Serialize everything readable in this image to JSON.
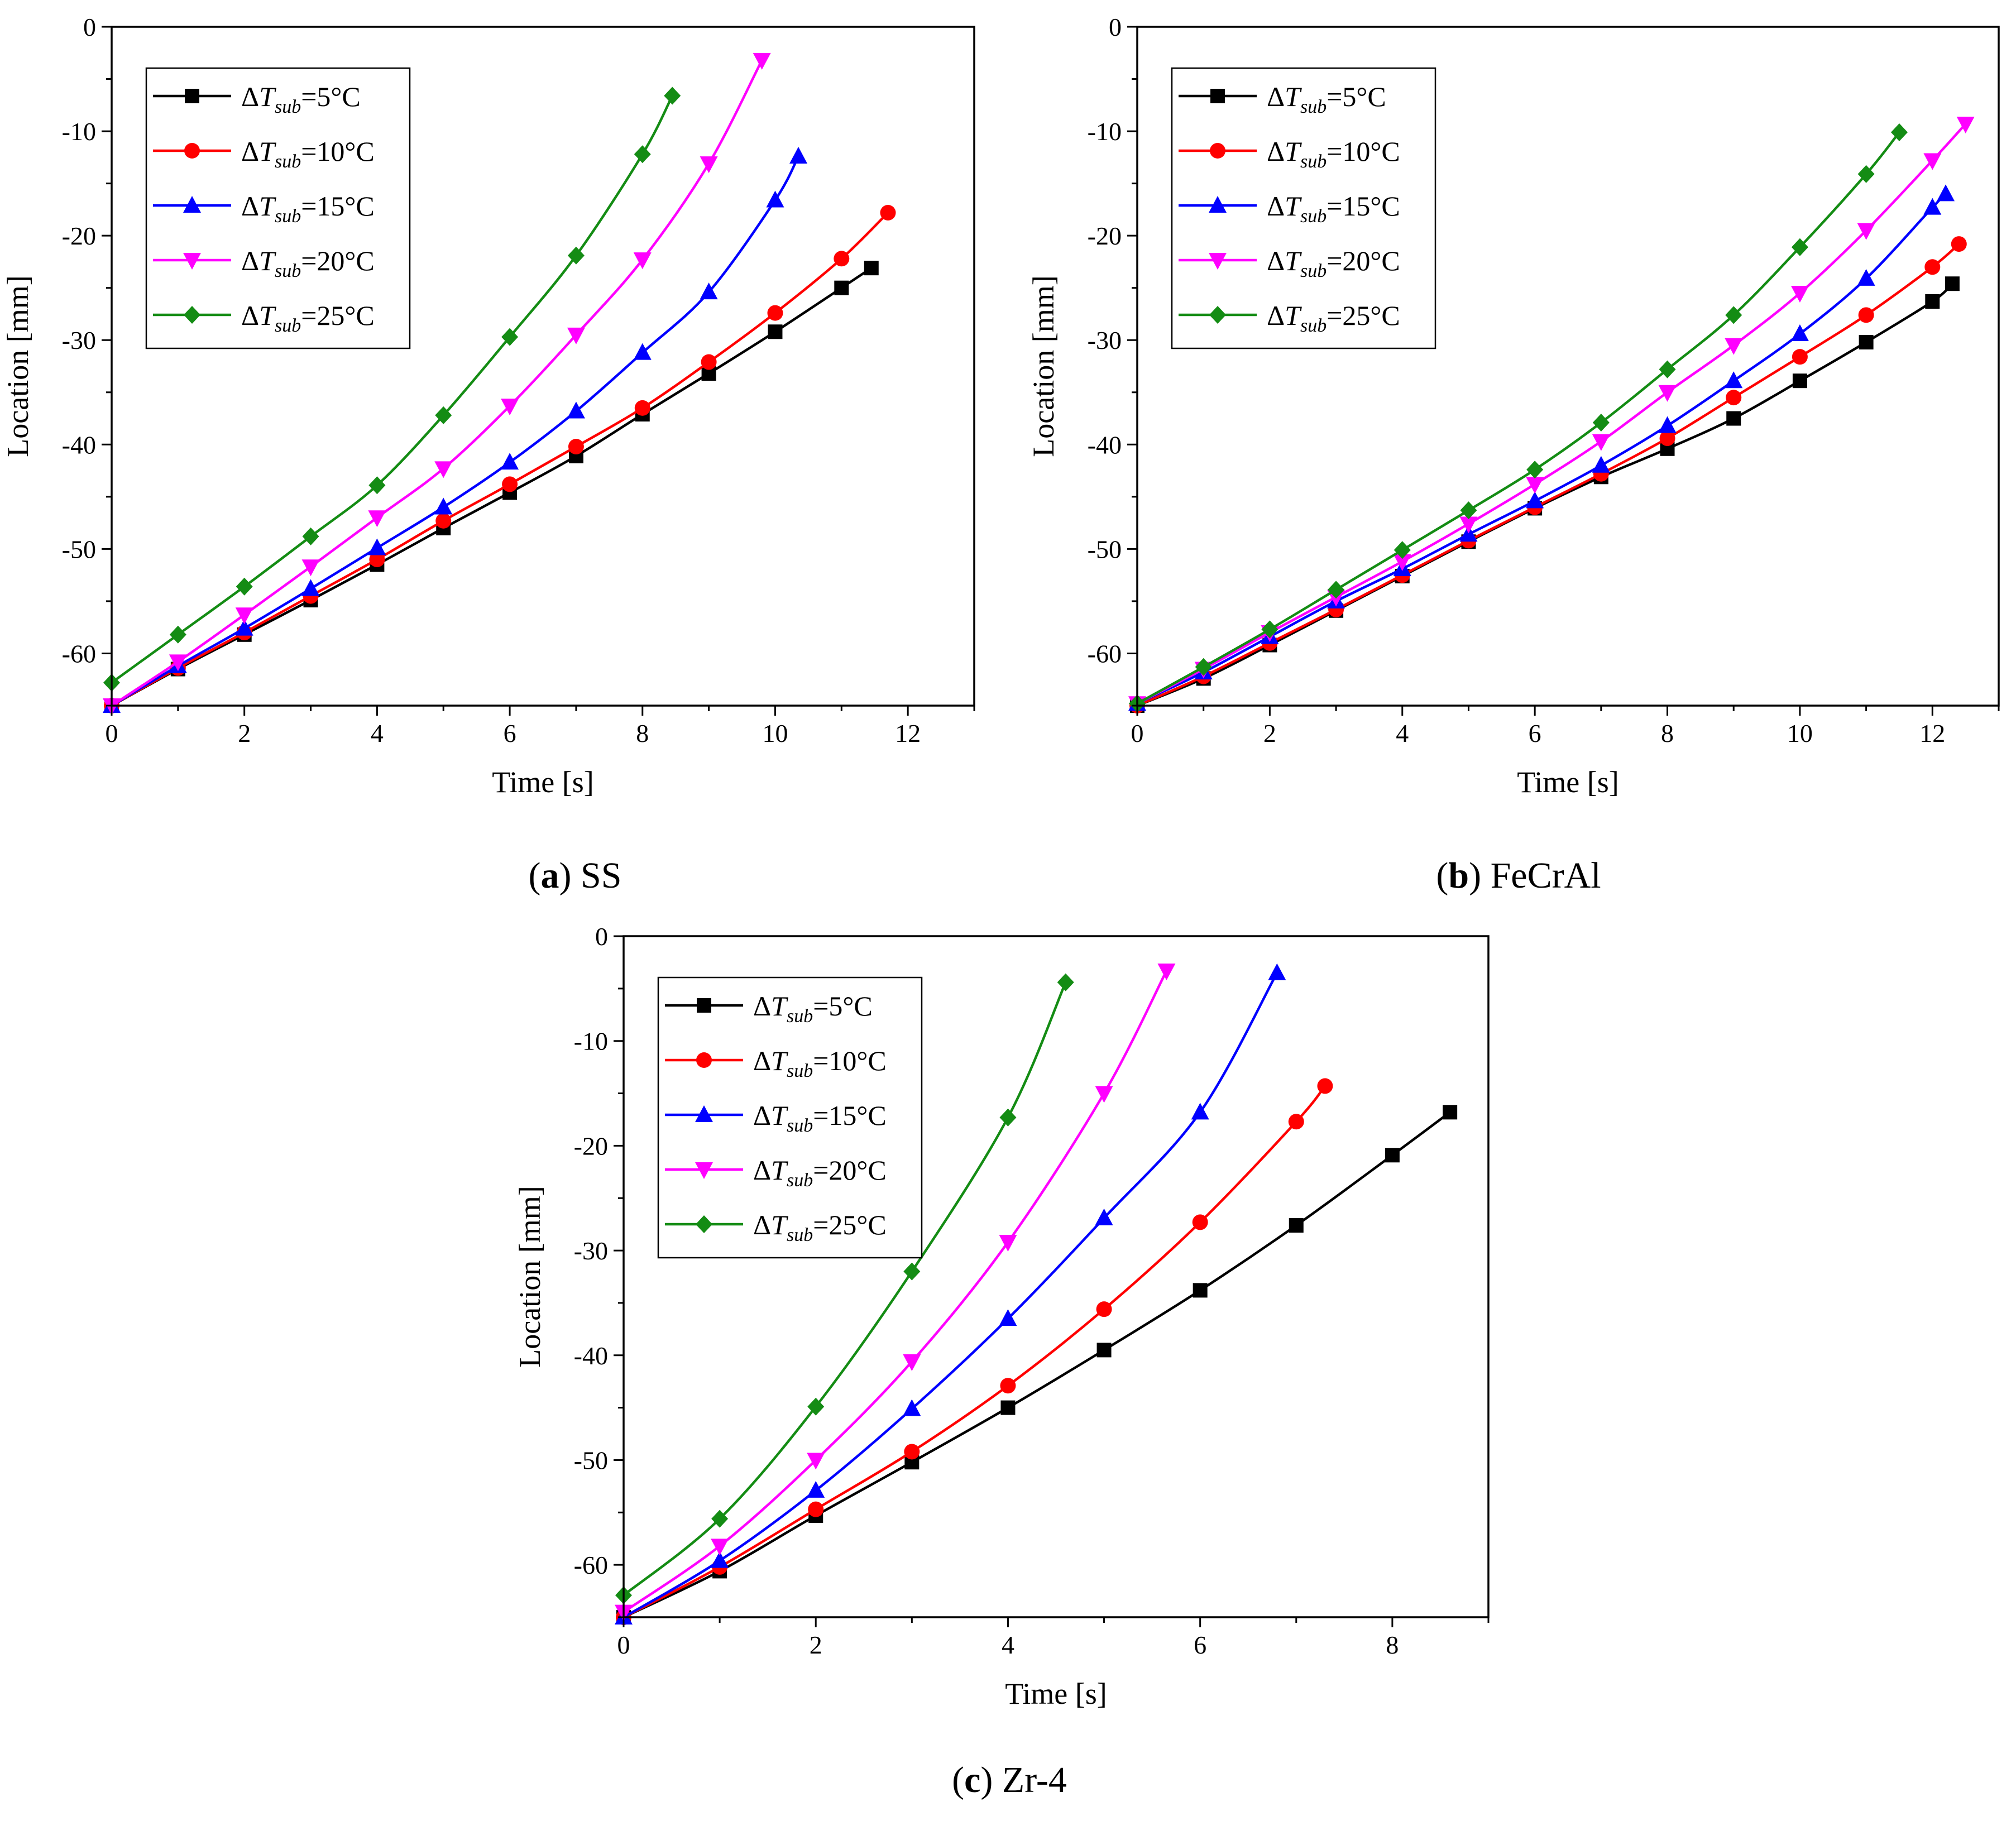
{
  "legend_prefix": "ΔT",
  "legend_sub": "sub",
  "chart_data": [
    {
      "id": "a",
      "type": "line",
      "caption_letter": "a",
      "caption_text": "SS",
      "xlabel": "Time [s]",
      "ylabel": "Location [mm]",
      "xlim": [
        0,
        13
      ],
      "ylim": [
        -65,
        0
      ],
      "xticks": [
        0,
        2,
        4,
        6,
        8,
        10,
        12
      ],
      "yticks": [
        0,
        -10,
        -20,
        -30,
        -40,
        -50,
        -60
      ],
      "legend_position": "top-left",
      "series": [
        {
          "name": "=5°C",
          "color": "#000000",
          "marker": "square",
          "x": [
            0,
            1,
            2,
            3,
            4,
            5,
            6,
            7,
            8,
            9,
            10,
            11,
            11.45
          ],
          "y": [
            -65,
            -61.5,
            -58.2,
            -54.9,
            -51.5,
            -48.0,
            -44.6,
            -41.1,
            -37.1,
            -33.2,
            -29.2,
            -25.0,
            -23.1
          ]
        },
        {
          "name": "=10°C",
          "color": "#ff0000",
          "marker": "circle",
          "x": [
            0,
            1,
            2,
            3,
            4,
            5,
            6,
            7,
            8,
            9,
            10,
            11,
            11.7
          ],
          "y": [
            -65,
            -61.4,
            -58.0,
            -54.5,
            -51.0,
            -47.3,
            -43.8,
            -40.2,
            -36.5,
            -32.1,
            -27.4,
            -22.2,
            -17.8
          ]
        },
        {
          "name": "=15°C",
          "color": "#0000ff",
          "marker": "triangle-up",
          "x": [
            0,
            1,
            2,
            3,
            4,
            5,
            6,
            7,
            8,
            9,
            10,
            10.35
          ],
          "y": [
            -65,
            -61.2,
            -57.6,
            -53.8,
            -49.9,
            -46.0,
            -41.7,
            -36.8,
            -31.2,
            -25.4,
            -16.6,
            -12.4
          ]
        },
        {
          "name": "=20°C",
          "color": "#ff00ff",
          "marker": "triangle-down",
          "x": [
            0,
            1,
            2,
            3,
            4,
            5,
            6,
            7,
            8,
            9,
            9.8
          ],
          "y": [
            -65,
            -60.8,
            -56.3,
            -51.7,
            -47.0,
            -42.3,
            -36.3,
            -29.5,
            -22.3,
            -13.1,
            -3.2
          ]
        },
        {
          "name": "=25°C",
          "color": "#148c14",
          "marker": "diamond",
          "x": [
            0,
            1,
            2,
            3,
            4,
            5,
            6,
            7,
            8,
            8.45
          ],
          "y": [
            -62.8,
            -58.2,
            -53.6,
            -48.8,
            -43.9,
            -37.2,
            -29.7,
            -21.9,
            -12.2,
            -6.6
          ]
        }
      ]
    },
    {
      "id": "b",
      "type": "line",
      "caption_letter": "b",
      "caption_text": "FeCrAl",
      "xlabel": "Time [s]",
      "ylabel": "Location [mm]",
      "xlim": [
        0,
        13
      ],
      "ylim": [
        -65,
        0
      ],
      "xticks": [
        0,
        2,
        4,
        6,
        8,
        10,
        12
      ],
      "yticks": [
        0,
        -10,
        -20,
        -30,
        -40,
        -50,
        -60
      ],
      "legend_position": "top-left",
      "series": [
        {
          "name": "=5°C",
          "color": "#000000",
          "marker": "square",
          "x": [
            0,
            1,
            2,
            3,
            4,
            5,
            6,
            7,
            8,
            9,
            10,
            11,
            12,
            12.3
          ],
          "y": [
            -65,
            -62.4,
            -59.2,
            -55.9,
            -52.6,
            -49.3,
            -46.1,
            -43.1,
            -40.4,
            -37.5,
            -33.9,
            -30.2,
            -26.3,
            -24.6
          ]
        },
        {
          "name": "=10°C",
          "color": "#ff0000",
          "marker": "circle",
          "x": [
            0,
            1,
            2,
            3,
            4,
            5,
            6,
            7,
            8,
            9,
            10,
            11,
            12,
            12.4
          ],
          "y": [
            -65,
            -62.2,
            -59.0,
            -55.8,
            -52.5,
            -49.2,
            -46.0,
            -42.8,
            -39.4,
            -35.5,
            -31.6,
            -27.6,
            -23.0,
            -20.8
          ]
        },
        {
          "name": "=15°C",
          "color": "#0000ff",
          "marker": "triangle-up",
          "x": [
            0,
            1,
            2,
            3,
            4,
            5,
            6,
            7,
            8,
            9,
            10,
            11,
            12,
            12.2
          ],
          "y": [
            -64.8,
            -61.8,
            -58.4,
            -55.0,
            -51.9,
            -48.6,
            -45.4,
            -42.0,
            -38.2,
            -33.9,
            -29.4,
            -24.1,
            -17.3,
            -16.0
          ]
        },
        {
          "name": "=20°C",
          "color": "#ff00ff",
          "marker": "triangle-down",
          "x": [
            0,
            1,
            2,
            3,
            4,
            5,
            6,
            7,
            8,
            9,
            10,
            11,
            12,
            12.5
          ],
          "y": [
            -64.8,
            -61.5,
            -58.0,
            -54.6,
            -51.2,
            -47.6,
            -43.8,
            -39.7,
            -35.0,
            -30.5,
            -25.5,
            -19.5,
            -12.8,
            -9.3
          ]
        },
        {
          "name": "=25°C",
          "color": "#148c14",
          "marker": "diamond",
          "x": [
            0,
            1,
            2,
            3,
            4,
            5,
            6,
            7,
            8,
            9,
            10,
            11,
            11.5
          ],
          "y": [
            -64.8,
            -61.3,
            -57.7,
            -53.9,
            -50.1,
            -46.3,
            -42.4,
            -37.9,
            -32.8,
            -27.6,
            -21.1,
            -14.1,
            -10.1
          ]
        }
      ]
    },
    {
      "id": "c",
      "type": "line",
      "caption_letter": "c",
      "caption_text": "Zr-4",
      "xlabel": "Time [s]",
      "ylabel": "Location [mm]",
      "xlim": [
        0,
        9
      ],
      "ylim": [
        -65,
        0
      ],
      "xticks": [
        0,
        2,
        4,
        6,
        8
      ],
      "yticks": [
        0,
        -10,
        -20,
        -30,
        -40,
        -50,
        -60
      ],
      "legend_position": "top-left",
      "series": [
        {
          "name": "=5°C",
          "color": "#000000",
          "marker": "square",
          "x": [
            0,
            1,
            2,
            3,
            4,
            5,
            6,
            7,
            8,
            8.6
          ],
          "y": [
            -65,
            -60.6,
            -55.3,
            -50.2,
            -45.0,
            -39.5,
            -33.8,
            -27.6,
            -20.9,
            -16.8
          ]
        },
        {
          "name": "=10°C",
          "color": "#ff0000",
          "marker": "circle",
          "x": [
            0,
            1,
            2,
            3,
            4,
            5,
            6,
            7,
            7.3
          ],
          "y": [
            -65,
            -60.2,
            -54.7,
            -49.2,
            -42.9,
            -35.6,
            -27.3,
            -17.7,
            -14.3
          ]
        },
        {
          "name": "=15°C",
          "color": "#0000ff",
          "marker": "triangle-up",
          "x": [
            0,
            1,
            2,
            3,
            4,
            5,
            6,
            6.8
          ],
          "y": [
            -65,
            -59.6,
            -52.9,
            -45.1,
            -36.5,
            -26.9,
            -16.8,
            -3.5
          ]
        },
        {
          "name": "=20°C",
          "color": "#ff00ff",
          "marker": "triangle-down",
          "x": [
            0,
            1,
            2,
            3,
            4,
            5,
            5.65
          ],
          "y": [
            -64.5,
            -58.2,
            -50.0,
            -40.6,
            -29.2,
            -15.0,
            -3.3
          ]
        },
        {
          "name": "=25°C",
          "color": "#148c14",
          "marker": "diamond",
          "x": [
            0,
            1,
            2,
            3,
            4,
            4.6
          ],
          "y": [
            -62.9,
            -55.6,
            -44.9,
            -32.0,
            -17.3,
            -4.4
          ]
        }
      ]
    }
  ]
}
